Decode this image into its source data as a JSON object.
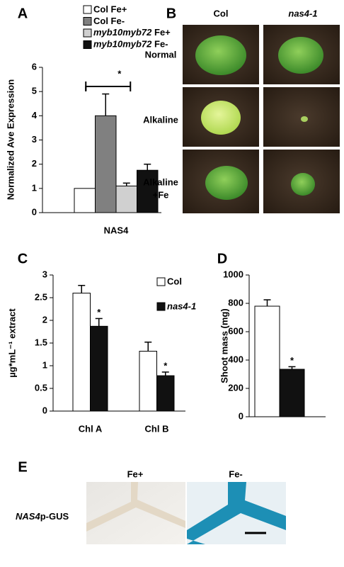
{
  "chart_data": [
    {
      "type": "bar",
      "panel_label": "A",
      "ylabel": "Normalized Ave Expression",
      "categories": [
        "NAS4"
      ],
      "series": [
        {
          "name": "Col Fe+",
          "color": "#ffffff",
          "values": [
            1
          ],
          "errors": [
            0
          ]
        },
        {
          "name": "Col Fe-",
          "color": "#808080",
          "values": [
            4.0
          ],
          "errors": [
            0.9
          ]
        },
        {
          "name": "myb10myb72 Fe+",
          "color": "#d0d0d0",
          "values": [
            1.1
          ],
          "errors": [
            0.12
          ]
        },
        {
          "name": "myb10myb72 Fe-",
          "color": "#111111",
          "values": [
            1.75
          ],
          "errors": [
            0.25
          ]
        }
      ],
      "ylim": [
        0,
        6
      ],
      "yticks": [
        0,
        1,
        2,
        3,
        4,
        5,
        6
      ],
      "grid": false,
      "annotations": [
        "*"
      ]
    },
    {
      "type": "bar",
      "panel_label": "C",
      "ylabel": "µg*mL⁻¹ extract",
      "categories": [
        "Chl A",
        "Chl B"
      ],
      "series": [
        {
          "name": "Col",
          "color": "#ffffff",
          "values": [
            2.6,
            1.32
          ],
          "errors": [
            0.17,
            0.2
          ]
        },
        {
          "name": "nas4-1",
          "color": "#111111",
          "values": [
            1.87,
            0.78
          ],
          "errors": [
            0.17,
            0.08
          ]
        }
      ],
      "ylim": [
        0,
        3
      ],
      "yticks": [
        0,
        0.5,
        1,
        1.5,
        2,
        2.5,
        3
      ],
      "grid": false,
      "annotations": [
        "*",
        "*"
      ]
    },
    {
      "type": "bar",
      "panel_label": "D",
      "ylabel": "Shoot mass (mg)",
      "categories": [
        null
      ],
      "series": [
        {
          "color": "#ffffff",
          "values": [
            780
          ],
          "errors": [
            45
          ]
        },
        {
          "color": "#111111",
          "values": [
            335
          ],
          "errors": [
            18
          ]
        }
      ],
      "ylim": [
        0,
        1000
      ],
      "yticks": [
        0,
        200,
        400,
        600,
        800,
        1000
      ],
      "grid": false,
      "annotations": [
        "*"
      ]
    }
  ],
  "photos_b": {
    "panel_label": "B",
    "columns": [
      "Col",
      "nas4-1"
    ],
    "rows": [
      [
        "Normal"
      ],
      [
        "Alkaline"
      ],
      [
        "Alkaline",
        "+Fe"
      ]
    ]
  },
  "photos_e": {
    "panel_label": "E",
    "columns": [
      "Fe+",
      "Fe-"
    ],
    "row_label": {
      "gene": "NAS4",
      "suffix": "p-GUS"
    }
  }
}
